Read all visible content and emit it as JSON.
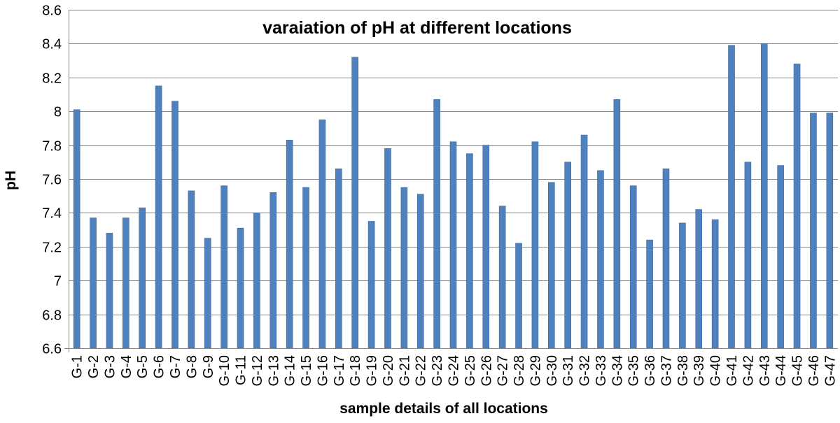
{
  "chart_data": {
    "type": "bar",
    "title": "varaiation of pH at different locations",
    "xlabel": "sample details of all locations",
    "ylabel": "pH",
    "ylim": [
      6.6,
      8.6
    ],
    "yticks": [
      "6.6",
      "6.8",
      "7",
      "7.2",
      "7.4",
      "7.6",
      "7.8",
      "8",
      "8.2",
      "8.4",
      "8.6"
    ],
    "grid": true,
    "legend": "none",
    "bar_color": "#4F81BD",
    "categories": [
      "G-1",
      "G-2",
      "G-3",
      "G-4",
      "G-5",
      "G-6",
      "G-7",
      "G-8",
      "G-9",
      "G-10",
      "G-11",
      "G-12",
      "G-13",
      "G-14",
      "G-15",
      "G-16",
      "G-17",
      "G-18",
      "G-19",
      "G-20",
      "G-21",
      "G-22",
      "G-23",
      "G-24",
      "G-25",
      "G-26",
      "G-27",
      "G-28",
      "G-29",
      "G-30",
      "G-31",
      "G-32",
      "G-33",
      "G-34",
      "G-35",
      "G-36",
      "G-37",
      "G-38",
      "G-39",
      "G-40",
      "G-41",
      "G-42",
      "G-43",
      "G-44",
      "G-45",
      "G-46",
      "G-47"
    ],
    "values": [
      8.01,
      7.37,
      7.28,
      7.37,
      7.43,
      8.15,
      8.06,
      7.53,
      7.25,
      7.56,
      7.31,
      7.4,
      7.52,
      7.83,
      7.55,
      7.95,
      7.66,
      8.32,
      7.35,
      7.78,
      7.55,
      7.51,
      8.07,
      7.82,
      7.75,
      7.8,
      7.44,
      7.22,
      7.82,
      7.58,
      7.7,
      7.86,
      7.65,
      8.07,
      7.56,
      7.24,
      7.66,
      7.34,
      7.42,
      7.36,
      8.39,
      7.7,
      8.4,
      7.68,
      8.28,
      7.99,
      7.99
    ]
  }
}
